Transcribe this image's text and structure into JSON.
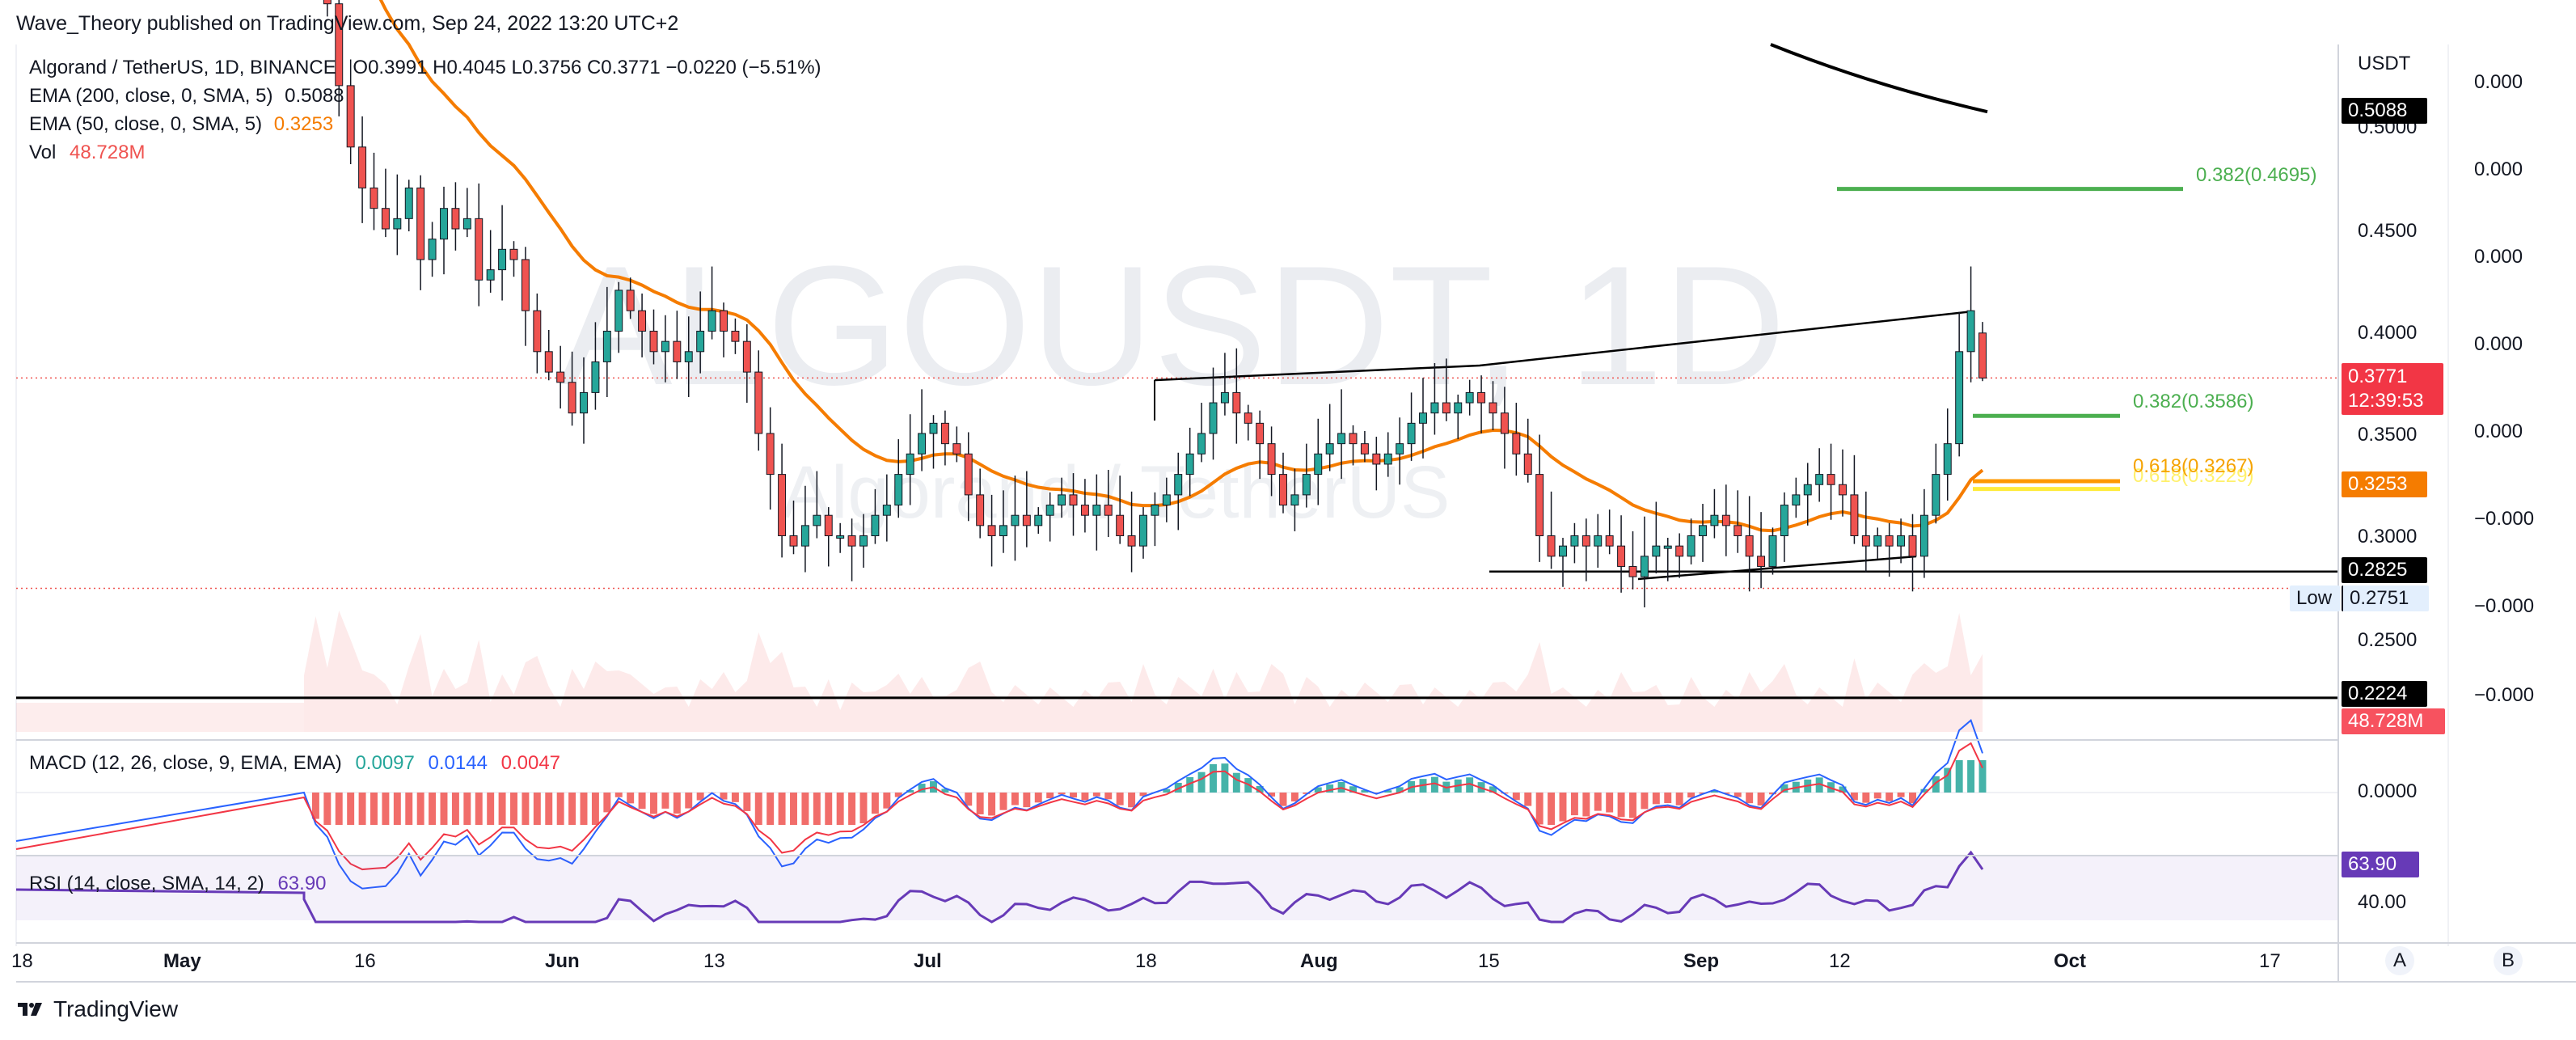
{
  "published_line": "Wave_Theory published on TradingView.com, Sep 24, 2022 13:20 UTC+2",
  "legend": {
    "symbol_line": "Algorand / TetherUS, 1D, BINANCE",
    "ohlc": "O0.3991 H0.4045 L0.3756 C0.3771 −0.0220 (−5.51%)",
    "ema200_label": "EMA (200, close, 0, SMA, 5)",
    "ema200_value": "0.5088",
    "ema50_label": "EMA (50, close, 0, SMA, 5)",
    "ema50_value": "0.3253",
    "vol_label": "Vol",
    "vol_value": "48.728M"
  },
  "watermark": {
    "symbol": "ALGOUSDT, 1D",
    "name": "Algorand / TetherUS"
  },
  "currency": "USDT",
  "price_ticks": [
    "0.5000",
    "0.4500",
    "0.4000",
    "0.3500",
    "0.3000",
    "0.2500"
  ],
  "right_scale_ticks": [
    "0.000",
    "0.000",
    "0.000",
    "0.000",
    "0.000",
    "−0.000",
    "−0.000",
    "−0.000"
  ],
  "price_tags": {
    "ema200": "0.5088",
    "last_price": "0.3771",
    "countdown": "12:39:53",
    "ema50": "0.3253",
    "support": "0.2825",
    "low_label": "Low",
    "low_value": "0.2751",
    "bottom_line": "0.2224",
    "volume": "48.728M"
  },
  "fib_labels": {
    "upper": "0.382(0.4695)",
    "mid": "0.382(0.3586)",
    "lower_a": "0.618(0.3267)",
    "lower_b": "0.618(0.3229)"
  },
  "macd": {
    "label": "MACD (12, 26, close, 9, EMA, EMA)",
    "v1": "0.0097",
    "v2": "0.0144",
    "v3": "0.0047",
    "tick": "0.0000"
  },
  "rsi": {
    "label": "RSI (14, close, SMA, 14, 2)",
    "value": "63.90",
    "tag": "63.90",
    "tick": "40.00"
  },
  "time_axis": [
    "18",
    "May",
    "16",
    "Jun",
    "13",
    "Jul",
    "18",
    "Aug",
    "15",
    "Sep",
    "12",
    "Oct",
    "17"
  ],
  "scale_buttons": [
    "A",
    "B"
  ],
  "brand": "TradingView",
  "colors": {
    "up": "#26a69a",
    "down": "#ef5350",
    "ema50": "#f57c00",
    "ema200": "#000000",
    "macd_line": "#2962ff",
    "signal_line": "#f23645",
    "rsi": "#673ab7",
    "fib_green": "#4caf50",
    "fib_orange": "#ff9800",
    "fib_yellow": "#ffeb3b"
  },
  "chart_data": {
    "type": "candlestick",
    "symbol": "Algorand / TetherUS",
    "interval": "1D",
    "yrange": [
      0.2224,
      0.5088
    ],
    "last": {
      "open": 0.3991,
      "high": 0.4045,
      "low": 0.3756,
      "close": 0.3771,
      "change": -0.022,
      "change_pct": -5.51
    },
    "ema200_last": 0.5088,
    "ema50_last": 0.3253,
    "volume_last": "48.728M",
    "period_low": 0.2751,
    "fib_levels": [
      {
        "ratio": 0.382,
        "price": 0.4695
      },
      {
        "ratio": 0.382,
        "price": 0.3586
      },
      {
        "ratio": 0.618,
        "price": 0.3267
      },
      {
        "ratio": 0.618,
        "price": 0.3229
      }
    ],
    "horizontal_lines": [
      0.2825,
      0.2224
    ],
    "macd_last": [
      0.0097,
      0.0144,
      0.0047
    ],
    "rsi_last": 63.9,
    "closes": [
      0.62,
      0.58,
      0.56,
      0.52,
      0.49,
      0.47,
      0.46,
      0.45,
      0.455,
      0.47,
      0.435,
      0.445,
      0.46,
      0.45,
      0.455,
      0.425,
      0.43,
      0.44,
      0.435,
      0.41,
      0.39,
      0.38,
      0.375,
      0.36,
      0.37,
      0.385,
      0.4,
      0.42,
      0.41,
      0.4,
      0.39,
      0.395,
      0.385,
      0.39,
      0.4,
      0.41,
      0.4,
      0.395,
      0.38,
      0.35,
      0.33,
      0.3,
      0.295,
      0.305,
      0.31,
      0.3,
      0.3,
      0.295,
      0.3,
      0.31,
      0.315,
      0.33,
      0.34,
      0.35,
      0.355,
      0.345,
      0.34,
      0.32,
      0.305,
      0.3,
      0.305,
      0.31,
      0.305,
      0.31,
      0.315,
      0.32,
      0.315,
      0.31,
      0.315,
      0.31,
      0.3,
      0.295,
      0.31,
      0.315,
      0.32,
      0.33,
      0.34,
      0.35,
      0.365,
      0.37,
      0.36,
      0.355,
      0.345,
      0.33,
      0.315,
      0.32,
      0.33,
      0.34,
      0.345,
      0.35,
      0.345,
      0.34,
      0.335,
      0.34,
      0.345,
      0.355,
      0.36,
      0.365,
      0.36,
      0.365,
      0.37,
      0.365,
      0.36,
      0.35,
      0.34,
      0.33,
      0.3,
      0.29,
      0.295,
      0.3,
      0.295,
      0.3,
      0.295,
      0.285,
      0.28,
      0.29,
      0.295,
      0.295,
      0.29,
      0.3,
      0.305,
      0.31,
      0.305,
      0.3,
      0.29,
      0.285,
      0.3,
      0.315,
      0.32,
      0.325,
      0.33,
      0.325,
      0.32,
      0.3,
      0.295,
      0.3,
      0.295,
      0.3,
      0.29,
      0.31,
      0.33,
      0.345,
      0.39,
      0.41,
      0.3771
    ]
  }
}
